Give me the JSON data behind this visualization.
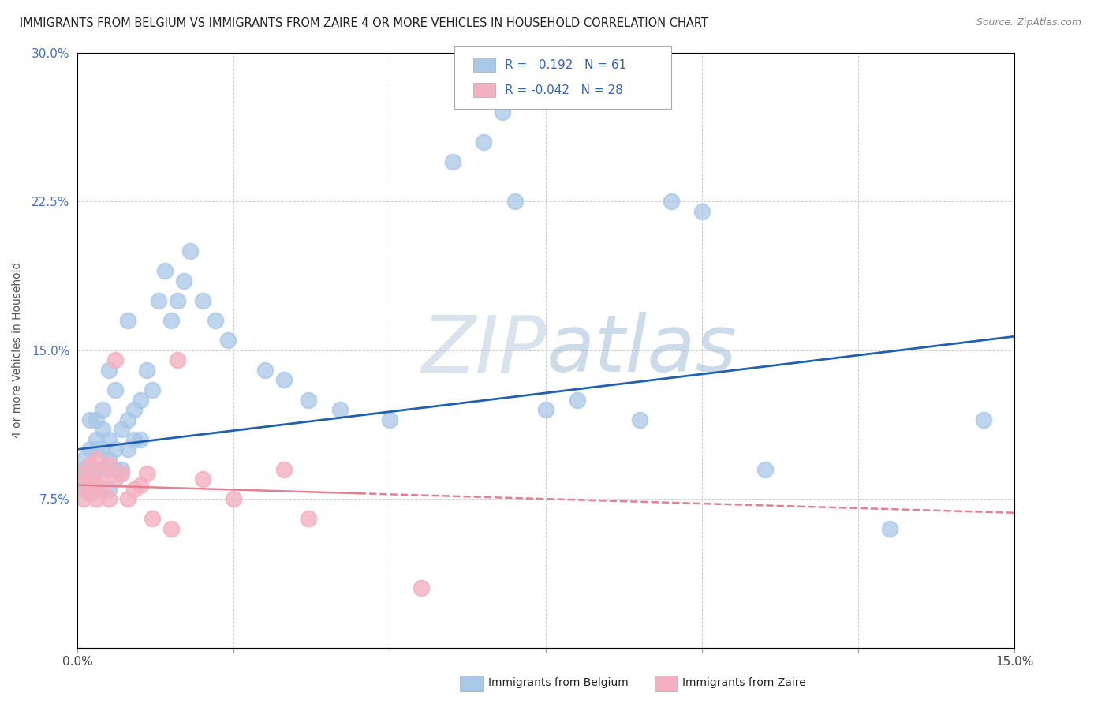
{
  "title": "IMMIGRANTS FROM BELGIUM VS IMMIGRANTS FROM ZAIRE 4 OR MORE VEHICLES IN HOUSEHOLD CORRELATION CHART",
  "source": "Source: ZipAtlas.com",
  "ylabel_label": "4 or more Vehicles in Household",
  "legend_blue_label": "Immigrants from Belgium",
  "legend_pink_label": "Immigrants from Zaire",
  "R_blue": 0.192,
  "N_blue": 61,
  "R_pink": -0.042,
  "N_pink": 28,
  "blue_scatter_color": "#a8c8e8",
  "pink_scatter_color": "#f4b0c0",
  "blue_line_color": "#2060b0",
  "pink_line_color": "#e08090",
  "blue_trend": [
    0.1,
    0.157
  ],
  "pink_trend_solid": [
    0.082,
    0.073
  ],
  "pink_trend_dashed": [
    0.073,
    0.068
  ],
  "watermark_color": "#c8d8ec",
  "blue_x": [
    0.001,
    0.001,
    0.001,
    0.001,
    0.002,
    0.002,
    0.002,
    0.002,
    0.003,
    0.003,
    0.003,
    0.003,
    0.003,
    0.004,
    0.004,
    0.004,
    0.004,
    0.005,
    0.005,
    0.005,
    0.005,
    0.006,
    0.006,
    0.006,
    0.007,
    0.007,
    0.008,
    0.008,
    0.008,
    0.009,
    0.009,
    0.01,
    0.01,
    0.011,
    0.012,
    0.013,
    0.014,
    0.015,
    0.016,
    0.017,
    0.018,
    0.02,
    0.022,
    0.024,
    0.03,
    0.033,
    0.037,
    0.042,
    0.05,
    0.06,
    0.065,
    0.068,
    0.07,
    0.075,
    0.08,
    0.09,
    0.095,
    0.1,
    0.11,
    0.13,
    0.145
  ],
  "blue_y": [
    0.08,
    0.085,
    0.09,
    0.095,
    0.08,
    0.09,
    0.1,
    0.115,
    0.08,
    0.09,
    0.1,
    0.105,
    0.115,
    0.09,
    0.1,
    0.11,
    0.12,
    0.08,
    0.095,
    0.105,
    0.14,
    0.09,
    0.1,
    0.13,
    0.09,
    0.11,
    0.1,
    0.115,
    0.165,
    0.105,
    0.12,
    0.105,
    0.125,
    0.14,
    0.13,
    0.175,
    0.19,
    0.165,
    0.175,
    0.185,
    0.2,
    0.175,
    0.165,
    0.155,
    0.14,
    0.135,
    0.125,
    0.12,
    0.115,
    0.245,
    0.255,
    0.27,
    0.225,
    0.12,
    0.125,
    0.115,
    0.225,
    0.22,
    0.09,
    0.06,
    0.115
  ],
  "pink_x": [
    0.001,
    0.001,
    0.001,
    0.002,
    0.002,
    0.002,
    0.003,
    0.003,
    0.003,
    0.004,
    0.004,
    0.005,
    0.005,
    0.006,
    0.006,
    0.007,
    0.008,
    0.009,
    0.01,
    0.011,
    0.012,
    0.015,
    0.016,
    0.02,
    0.025,
    0.033,
    0.037,
    0.055
  ],
  "pink_y": [
    0.075,
    0.082,
    0.088,
    0.078,
    0.085,
    0.092,
    0.075,
    0.082,
    0.095,
    0.08,
    0.088,
    0.075,
    0.092,
    0.085,
    0.145,
    0.088,
    0.075,
    0.08,
    0.082,
    0.088,
    0.065,
    0.06,
    0.145,
    0.085,
    0.075,
    0.09,
    0.065,
    0.03
  ]
}
